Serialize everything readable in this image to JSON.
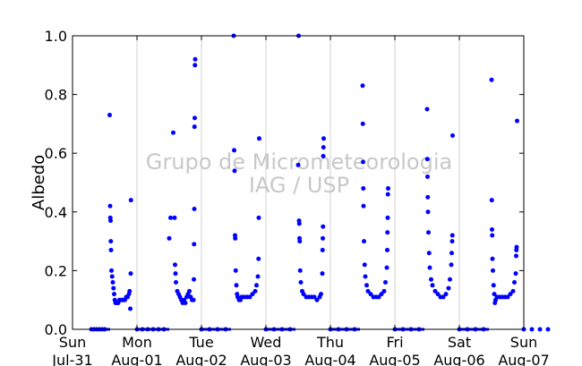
{
  "chart_data": {
    "type": "scatter",
    "title": "",
    "xlabel": "",
    "ylabel": "Albedo",
    "ylim": [
      0,
      1
    ],
    "yticks": [
      "0.0",
      "0.2",
      "0.4",
      "0.6",
      "0.8",
      "1.0"
    ],
    "xlim": [
      "2016-07-31",
      "2016-08-07"
    ],
    "xticks": [
      {
        "date": "2016-07-31",
        "day": "Sun",
        "label": "Jul-31"
      },
      {
        "date": "2016-08-01",
        "day": "Mon",
        "label": "Aug-01"
      },
      {
        "date": "2016-08-02",
        "day": "Tue",
        "label": "Aug-02"
      },
      {
        "date": "2016-08-03",
        "day": "Wed",
        "label": "Aug-03"
      },
      {
        "date": "2016-08-04",
        "day": "Thu",
        "label": "Aug-04"
      },
      {
        "date": "2016-08-05",
        "day": "Fri",
        "label": "Aug-05"
      },
      {
        "date": "2016-08-06",
        "day": "Sat",
        "label": "Aug-06"
      },
      {
        "date": "2016-08-07",
        "day": "Sun",
        "label": "Aug-07"
      }
    ],
    "vertical_grid": true,
    "marker_color": "#0000ff",
    "watermark": [
      "Grupo de Micrometeorologia",
      "IAG / USP"
    ],
    "series": [
      {
        "points": [
          [
            "2016-07-31 07:00",
            0.0
          ],
          [
            "2016-07-31 08:00",
            0.0
          ],
          [
            "2016-07-31 09:00",
            0.0
          ],
          [
            "2016-07-31 10:00",
            0.0
          ],
          [
            "2016-07-31 11:00",
            0.0
          ],
          [
            "2016-07-31 12:00",
            0.0
          ],
          [
            "2016-07-31 13:50",
            0.73
          ],
          [
            "2016-07-31 14:00",
            0.42
          ],
          [
            "2016-07-31 14:05",
            0.38
          ],
          [
            "2016-07-31 14:10",
            0.37
          ],
          [
            "2016-07-31 14:15",
            0.3
          ],
          [
            "2016-07-31 14:20",
            0.27
          ],
          [
            "2016-07-31 14:30",
            0.2
          ],
          [
            "2016-07-31 14:45",
            0.18
          ],
          [
            "2016-07-31 15:00",
            0.16
          ],
          [
            "2016-07-31 15:15",
            0.14
          ],
          [
            "2016-07-31 15:30",
            0.12
          ],
          [
            "2016-07-31 15:45",
            0.1
          ],
          [
            "2016-07-31 16:00",
            0.09
          ],
          [
            "2016-07-31 16:30",
            0.09
          ],
          [
            "2016-07-31 17:00",
            0.09
          ],
          [
            "2016-07-31 17:30",
            0.1
          ],
          [
            "2016-07-31 18:00",
            0.1
          ],
          [
            "2016-07-31 18:30",
            0.1
          ],
          [
            "2016-07-31 19:00",
            0.1
          ],
          [
            "2016-07-31 19:30",
            0.1
          ],
          [
            "2016-07-31 20:00",
            0.11
          ],
          [
            "2016-07-31 20:30",
            0.11
          ],
          [
            "2016-07-31 21:00",
            0.12
          ],
          [
            "2016-07-31 21:15",
            0.13
          ],
          [
            "2016-07-31 21:30",
            0.07
          ],
          [
            "2016-07-31 21:40",
            0.19
          ],
          [
            "2016-07-31 21:45",
            0.44
          ],
          [
            "2016-08-01 00:00",
            0.0
          ],
          [
            "2016-08-01 02:00",
            0.0
          ],
          [
            "2016-08-01 04:00",
            0.0
          ],
          [
            "2016-08-01 06:00",
            0.0
          ],
          [
            "2016-08-01 08:00",
            0.0
          ],
          [
            "2016-08-01 10:00",
            0.0
          ],
          [
            "2016-08-01 12:00",
            0.31
          ],
          [
            "2016-08-01 12:30",
            0.38
          ],
          [
            "2016-08-01 13:30",
            0.67
          ],
          [
            "2016-08-01 14:00",
            0.38
          ],
          [
            "2016-08-01 14:10",
            0.22
          ],
          [
            "2016-08-01 14:20",
            0.19
          ],
          [
            "2016-08-01 14:30",
            0.16
          ],
          [
            "2016-08-01 15:00",
            0.13
          ],
          [
            "2016-08-01 15:30",
            0.12
          ],
          [
            "2016-08-01 16:00",
            0.11
          ],
          [
            "2016-08-01 16:30",
            0.1
          ],
          [
            "2016-08-01 17:00",
            0.09
          ],
          [
            "2016-08-01 17:30",
            0.1
          ],
          [
            "2016-08-01 18:00",
            0.09
          ],
          [
            "2016-08-01 18:30",
            0.11
          ],
          [
            "2016-08-01 19:00",
            0.12
          ],
          [
            "2016-08-01 19:30",
            0.13
          ],
          [
            "2016-08-01 20:00",
            0.11
          ],
          [
            "2016-08-01 20:30",
            0.1
          ],
          [
            "2016-08-01 21:00",
            0.1
          ],
          [
            "2016-08-01 21:10",
            0.17
          ],
          [
            "2016-08-01 21:15",
            0.29
          ],
          [
            "2016-08-01 21:20",
            0.41
          ],
          [
            "2016-08-01 21:25",
            0.69
          ],
          [
            "2016-08-01 21:30",
            0.72
          ],
          [
            "2016-08-01 21:35",
            0.9
          ],
          [
            "2016-08-01 21:40",
            0.92
          ],
          [
            "2016-08-02 00:00",
            0.0
          ],
          [
            "2016-08-02 03:00",
            0.0
          ],
          [
            "2016-08-02 06:00",
            0.0
          ],
          [
            "2016-08-02 09:00",
            0.0
          ],
          [
            "2016-08-02 12:00",
            1.0
          ],
          [
            "2016-08-02 12:10",
            0.61
          ],
          [
            "2016-08-02 12:20",
            0.54
          ],
          [
            "2016-08-02 12:30",
            0.32
          ],
          [
            "2016-08-02 12:35",
            0.31
          ],
          [
            "2016-08-02 12:45",
            0.2
          ],
          [
            "2016-08-02 13:00",
            0.15
          ],
          [
            "2016-08-02 13:15",
            0.12
          ],
          [
            "2016-08-02 13:30",
            0.11
          ],
          [
            "2016-08-02 14:00",
            0.1
          ],
          [
            "2016-08-02 14:30",
            0.1
          ],
          [
            "2016-08-02 15:00",
            0.11
          ],
          [
            "2016-08-02 16:00",
            0.11
          ],
          [
            "2016-08-02 17:00",
            0.11
          ],
          [
            "2016-08-02 18:00",
            0.11
          ],
          [
            "2016-08-02 19:00",
            0.12
          ],
          [
            "2016-08-02 20:00",
            0.13
          ],
          [
            "2016-08-02 20:30",
            0.15
          ],
          [
            "2016-08-02 21:00",
            0.18
          ],
          [
            "2016-08-02 21:15",
            0.24
          ],
          [
            "2016-08-02 21:20",
            0.38
          ],
          [
            "2016-08-02 21:30",
            0.65
          ],
          [
            "2016-08-03 00:00",
            0.0
          ],
          [
            "2016-08-03 03:00",
            0.0
          ],
          [
            "2016-08-03 06:00",
            0.0
          ],
          [
            "2016-08-03 09:00",
            0.0
          ],
          [
            "2016-08-03 12:00",
            0.56
          ],
          [
            "2016-08-03 12:10",
            1.0
          ],
          [
            "2016-08-03 12:20",
            0.37
          ],
          [
            "2016-08-03 12:25",
            0.36
          ],
          [
            "2016-08-03 12:30",
            0.31
          ],
          [
            "2016-08-03 12:35",
            0.3
          ],
          [
            "2016-08-03 12:45",
            0.2
          ],
          [
            "2016-08-03 13:00",
            0.16
          ],
          [
            "2016-08-03 13:30",
            0.13
          ],
          [
            "2016-08-03 14:00",
            0.12
          ],
          [
            "2016-08-03 15:00",
            0.11
          ],
          [
            "2016-08-03 16:00",
            0.11
          ],
          [
            "2016-08-03 17:00",
            0.11
          ],
          [
            "2016-08-03 18:00",
            0.11
          ],
          [
            "2016-08-03 19:00",
            0.1
          ],
          [
            "2016-08-03 20:00",
            0.11
          ],
          [
            "2016-08-03 20:30",
            0.12
          ],
          [
            "2016-08-03 21:00",
            0.19
          ],
          [
            "2016-08-03 21:05",
            0.27
          ],
          [
            "2016-08-03 21:10",
            0.31
          ],
          [
            "2016-08-03 21:15",
            0.35
          ],
          [
            "2016-08-03 21:20",
            0.59
          ],
          [
            "2016-08-03 21:25",
            0.62
          ],
          [
            "2016-08-03 21:30",
            0.65
          ],
          [
            "2016-08-04 00:00",
            0.0
          ],
          [
            "2016-08-04 03:00",
            0.0
          ],
          [
            "2016-08-04 06:00",
            0.0
          ],
          [
            "2016-08-04 09:00",
            0.0
          ],
          [
            "2016-08-04 12:00",
            0.83
          ],
          [
            "2016-08-04 12:05",
            0.7
          ],
          [
            "2016-08-04 12:10",
            0.57
          ],
          [
            "2016-08-04 12:15",
            0.48
          ],
          [
            "2016-08-04 12:20",
            0.42
          ],
          [
            "2016-08-04 12:30",
            0.3
          ],
          [
            "2016-08-04 12:45",
            0.22
          ],
          [
            "2016-08-04 13:00",
            0.18
          ],
          [
            "2016-08-04 13:30",
            0.15
          ],
          [
            "2016-08-04 14:00",
            0.13
          ],
          [
            "2016-08-04 15:00",
            0.12
          ],
          [
            "2016-08-04 16:00",
            0.11
          ],
          [
            "2016-08-04 17:00",
            0.11
          ],
          [
            "2016-08-04 18:00",
            0.11
          ],
          [
            "2016-08-04 19:00",
            0.12
          ],
          [
            "2016-08-04 20:00",
            0.13
          ],
          [
            "2016-08-04 20:30",
            0.16
          ],
          [
            "2016-08-04 21:00",
            0.21
          ],
          [
            "2016-08-04 21:10",
            0.27
          ],
          [
            "2016-08-04 21:15",
            0.33
          ],
          [
            "2016-08-04 21:20",
            0.38
          ],
          [
            "2016-08-04 21:25",
            0.46
          ],
          [
            "2016-08-04 21:30",
            0.48
          ],
          [
            "2016-08-05 00:00",
            0.0
          ],
          [
            "2016-08-05 03:00",
            0.0
          ],
          [
            "2016-08-05 06:00",
            0.0
          ],
          [
            "2016-08-05 09:00",
            0.0
          ],
          [
            "2016-08-05 12:00",
            0.75
          ],
          [
            "2016-08-05 12:05",
            0.58
          ],
          [
            "2016-08-05 12:10",
            0.52
          ],
          [
            "2016-08-05 12:15",
            0.45
          ],
          [
            "2016-08-05 12:20",
            0.4
          ],
          [
            "2016-08-05 12:30",
            0.33
          ],
          [
            "2016-08-05 12:45",
            0.26
          ],
          [
            "2016-08-05 13:00",
            0.21
          ],
          [
            "2016-08-05 13:30",
            0.17
          ],
          [
            "2016-08-05 14:00",
            0.15
          ],
          [
            "2016-08-05 15:00",
            0.13
          ],
          [
            "2016-08-05 16:00",
            0.12
          ],
          [
            "2016-08-05 17:00",
            0.11
          ],
          [
            "2016-08-05 18:00",
            0.11
          ],
          [
            "2016-08-05 19:00",
            0.12
          ],
          [
            "2016-08-05 20:00",
            0.14
          ],
          [
            "2016-08-05 20:30",
            0.17
          ],
          [
            "2016-08-05 21:00",
            0.22
          ],
          [
            "2016-08-05 21:10",
            0.26
          ],
          [
            "2016-08-05 21:20",
            0.3
          ],
          [
            "2016-08-05 21:25",
            0.32
          ],
          [
            "2016-08-05 21:30",
            0.66
          ],
          [
            "2016-08-06 00:00",
            0.0
          ],
          [
            "2016-08-06 03:00",
            0.0
          ],
          [
            "2016-08-06 06:00",
            0.0
          ],
          [
            "2016-08-06 09:00",
            0.0
          ],
          [
            "2016-08-06 12:00",
            0.85
          ],
          [
            "2016-08-06 12:05",
            0.44
          ],
          [
            "2016-08-06 12:10",
            0.34
          ],
          [
            "2016-08-06 12:15",
            0.32
          ],
          [
            "2016-08-06 12:20",
            0.24
          ],
          [
            "2016-08-06 12:30",
            0.2
          ],
          [
            "2016-08-06 12:45",
            0.15
          ],
          [
            "2016-08-06 13:00",
            0.12
          ],
          [
            "2016-08-06 13:15",
            0.09
          ],
          [
            "2016-08-06 13:30",
            0.1
          ],
          [
            "2016-08-06 14:00",
            0.11
          ],
          [
            "2016-08-06 15:00",
            0.11
          ],
          [
            "2016-08-06 16:00",
            0.11
          ],
          [
            "2016-08-06 17:00",
            0.11
          ],
          [
            "2016-08-06 18:00",
            0.11
          ],
          [
            "2016-08-06 19:00",
            0.12
          ],
          [
            "2016-08-06 20:00",
            0.13
          ],
          [
            "2016-08-06 20:30",
            0.16
          ],
          [
            "2016-08-06 21:00",
            0.19
          ],
          [
            "2016-08-06 21:10",
            0.25
          ],
          [
            "2016-08-06 21:15",
            0.27
          ],
          [
            "2016-08-06 21:20",
            0.28
          ],
          [
            "2016-08-06 21:30",
            0.71
          ],
          [
            "2016-08-07 00:00",
            0.0
          ],
          [
            "2016-08-07 03:00",
            0.0
          ],
          [
            "2016-08-07 06:00",
            0.0
          ],
          [
            "2016-08-07 09:00",
            0.0
          ]
        ]
      }
    ]
  }
}
